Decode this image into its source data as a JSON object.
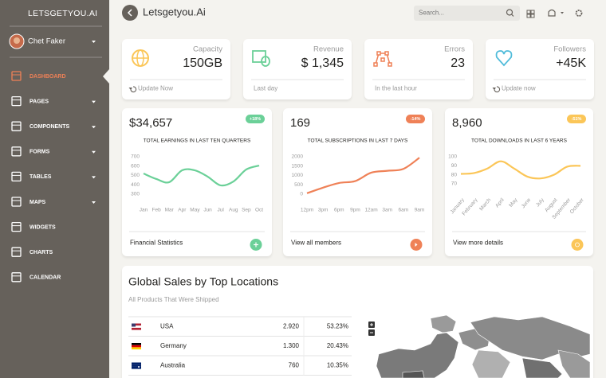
{
  "sidebar": {
    "brand": "LETSGETYOU.AI",
    "user": "Chet Faker",
    "nav": [
      {
        "label": "DASHBOARD",
        "active": true,
        "expandable": false
      },
      {
        "label": "PAGES",
        "active": false,
        "expandable": true
      },
      {
        "label": "COMPONENTS",
        "active": false,
        "expandable": true
      },
      {
        "label": "FORMS",
        "active": false,
        "expandable": true
      },
      {
        "label": "TABLES",
        "active": false,
        "expandable": true
      },
      {
        "label": "MAPS",
        "active": false,
        "expandable": true
      },
      {
        "label": "WIDGETS",
        "active": false,
        "expandable": false
      },
      {
        "label": "CHARTS",
        "active": false,
        "expandable": false
      },
      {
        "label": "CALENDAR",
        "active": false,
        "expandable": false
      }
    ]
  },
  "navbar": {
    "title": "Letsgetyou.Ai",
    "search_placeholder": "Search..."
  },
  "stats": [
    {
      "label": "Capacity",
      "value": "150GB",
      "footer": "Update Now",
      "refresh_icon": true,
      "color": "#fbc658"
    },
    {
      "label": "Revenue",
      "value": "$ 1,345",
      "footer": "Last day",
      "refresh_icon": false,
      "color": "#6bd098"
    },
    {
      "label": "Errors",
      "value": "23",
      "footer": "In the last hour",
      "refresh_icon": false,
      "color": "#ef8157"
    },
    {
      "label": "Followers",
      "value": "+45K",
      "footer": "Update now",
      "refresh_icon": true,
      "color": "#51bcda"
    }
  ],
  "charts": [
    {
      "type": "line",
      "value": "$34,657",
      "badge": "+18%",
      "title": "TOTAL EARNINGS IN LAST TEN QUARTERS",
      "categories": [
        "Jan",
        "Feb",
        "Mar",
        "Apr",
        "May",
        "Jun",
        "Jul",
        "Aug",
        "Sep",
        "Oct"
      ],
      "values": [
        521,
        462,
        428,
        555,
        555,
        487,
        394,
        436,
        564,
        606
      ],
      "color": "#6bd098",
      "ylim": [
        300,
        700
      ],
      "yticks": [
        300,
        400,
        500,
        600,
        700
      ],
      "rotate_labels": false,
      "footer": "Financial Statistics"
    },
    {
      "type": "line",
      "value": "169",
      "badge": "-14%",
      "title": "TOTAL SUBSCRIPTIONS IN LAST 7 DAYS",
      "categories": [
        "12pm",
        "3pm",
        "6pm",
        "9pm",
        "12am",
        "3am",
        "6am",
        "9am"
      ],
      "values": [
        50,
        350,
        600,
        700,
        1150,
        1250,
        1350,
        1950
      ],
      "color": "#ef8157",
      "ylim": [
        0,
        2000
      ],
      "yticks": [
        0,
        500,
        1000,
        1500,
        2000
      ],
      "rotate_labels": false,
      "footer": "View all members"
    },
    {
      "type": "line",
      "value": "8,960",
      "badge": "-51%",
      "title": "TOTAL DOWNLOADS IN LAST 6 YEARS",
      "categories": [
        "January",
        "February",
        "March",
        "April",
        "May",
        "June",
        "July",
        "August",
        "September",
        "October"
      ],
      "values": [
        81,
        82,
        87,
        95,
        87,
        78,
        76,
        80,
        89,
        90
      ],
      "color": "#fbc658",
      "ylim": [
        70,
        100
      ],
      "yticks": [
        70,
        80,
        90,
        100
      ],
      "rotate_labels": true,
      "footer": "View more details"
    }
  ],
  "sales": {
    "title": "Global Sales by Top Locations",
    "subtitle": "All Products That Were Shipped",
    "rows": [
      [
        "USA",
        "2.920",
        "53.23%"
      ],
      [
        "Germany",
        "1.300",
        "20.43%"
      ],
      [
        "Australia",
        "760",
        "10.35%"
      ]
    ]
  }
}
